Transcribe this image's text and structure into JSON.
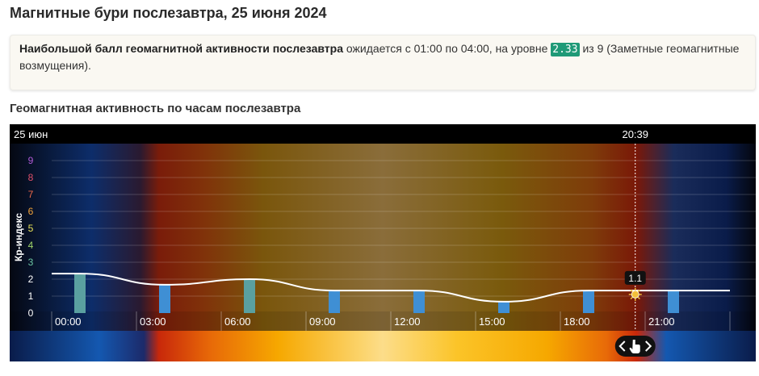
{
  "page": {
    "title": "Магнитные бури послезавтра, 25 июня 2024",
    "subtitle": "Геомагнитная активность по часам послезавтра"
  },
  "info": {
    "bold": "Наибольшой балл геомагнитной активности послезавтра",
    "text1": " ожидается с 01:00 по 04:00, на уровне ",
    "value": "2.33",
    "text2": " из 9 (Заметные геомагнитные возмущения)."
  },
  "chart_data": {
    "type": "bar",
    "date_label": "25 июн",
    "ylabel": "Кр-индекс",
    "ylim": [
      0,
      9
    ],
    "y_ticks": [
      "0",
      "1",
      "2",
      "3",
      "4",
      "5",
      "6",
      "7",
      "8",
      "9"
    ],
    "y_tick_colors": [
      "#ffffff",
      "#ffffff",
      "#ffffff",
      "#6cc6a4",
      "#9fd46a",
      "#e7e25a",
      "#f0a23a",
      "#ef6a4a",
      "#e0506a",
      "#b05ad6"
    ],
    "x_ticks": [
      "00:00",
      "03:00",
      "06:00",
      "09:00",
      "12:00",
      "15:00",
      "18:00",
      "21:00"
    ],
    "hours": [
      "01:00",
      "04:00",
      "07:00",
      "10:00",
      "13:00",
      "16:00",
      "19:00",
      "22:00"
    ],
    "values": [
      2.33,
      1.67,
      2.0,
      1.33,
      1.33,
      0.67,
      1.33,
      1.33
    ],
    "bar_colors": [
      "#5aa0a0",
      "#3f8fd4",
      "#5aa0a0",
      "#3f8fd4",
      "#3f8fd4",
      "#3f8fd4",
      "#3f8fd4",
      "#3f8fd4"
    ],
    "now_time": "20:39",
    "now_value": "1.1",
    "now_hour": 20.65
  }
}
